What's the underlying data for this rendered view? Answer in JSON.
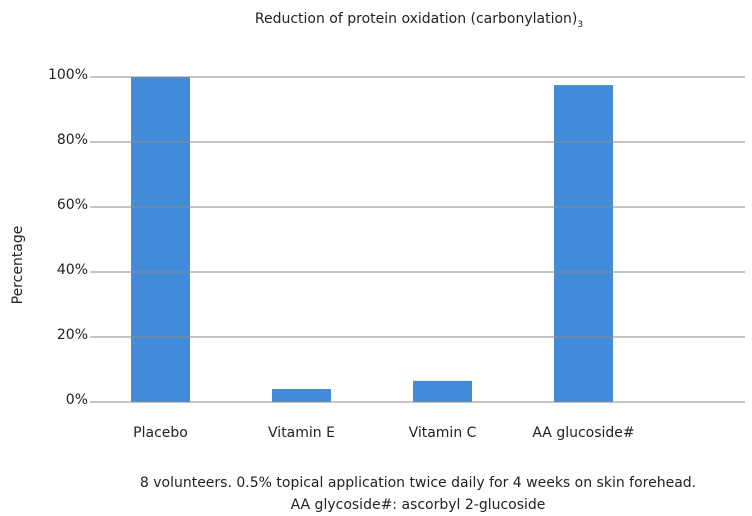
{
  "chart_data": {
    "type": "bar",
    "title": "Reduction of protein oxidation (carbonylation)",
    "title_footnote": "3",
    "y_label": "Percentage",
    "categories": [
      "Placebo",
      "Vitamin E",
      "Vitamin C",
      "AA glucoside#"
    ],
    "values": [
      100,
      4,
      6.5,
      97.5
    ],
    "color": "#418bd8",
    "ylim": [
      0,
      100
    ],
    "yticks": [
      {
        "value": 0,
        "label": "0%"
      },
      {
        "value": 20,
        "label": "20%"
      },
      {
        "value": 40,
        "label": "40%"
      },
      {
        "value": 60,
        "label": "60%"
      },
      {
        "value": 80,
        "label": "80%"
      },
      {
        "value": 100,
        "label": "100%"
      }
    ],
    "grid": true,
    "notes": [
      "8 volunteers. 0.5% topical application twice daily for 4 weeks on skin forehead.",
      "AA glycoside#: ascorbyl 2-glucoside"
    ]
  }
}
